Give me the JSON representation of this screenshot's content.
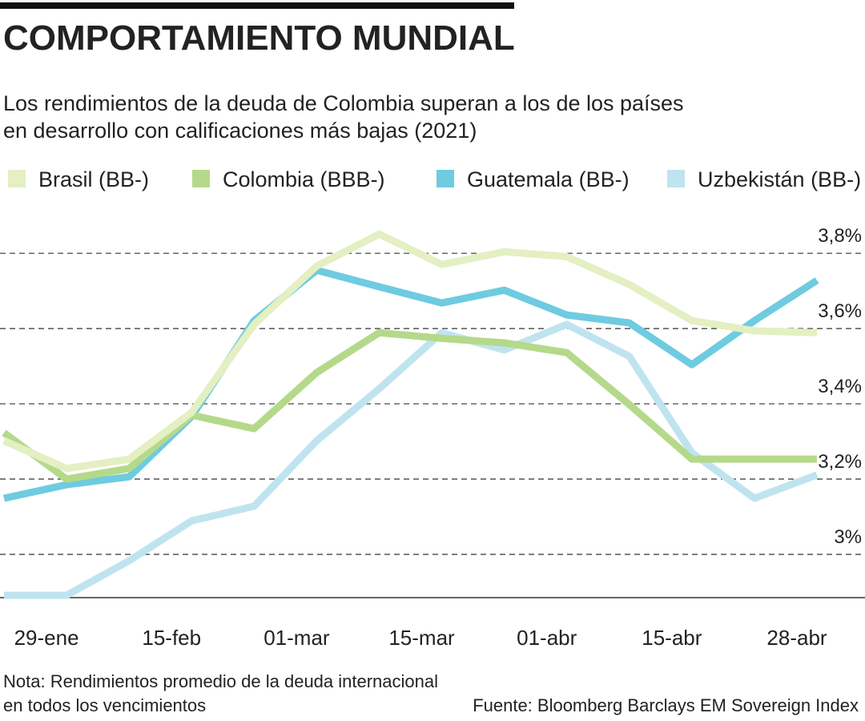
{
  "chart_data": {
    "type": "line",
    "title": "COMPORTAMIENTO MUNDIAL",
    "subtitle": [
      "Los rendimientos de la deuda de Colombia superan a los de los países",
      "en desarrollo con calificaciones más bajas (2021)"
    ],
    "categories": [
      null,
      "29-ene",
      null,
      "15-feb",
      null,
      "01-mar",
      null,
      "15-mar",
      null,
      "01-abr",
      null,
      "15-abr",
      null,
      "28-abr"
    ],
    "series": [
      {
        "name": "Uzbekistán (BB-)",
        "color": "#bfe4ef",
        "values": [
          2.891,
          2.891,
          2.983,
          3.089,
          3.128,
          3.302,
          3.44,
          3.589,
          3.543,
          3.611,
          3.526,
          3.27,
          3.149,
          3.211
        ]
      },
      {
        "name": "Guatemala (BB-)",
        "color": "#6ecbe0",
        "values": [
          3.149,
          3.185,
          3.206,
          3.366,
          3.621,
          3.755,
          3.711,
          3.668,
          3.702,
          3.636,
          3.615,
          3.504,
          3.621,
          3.728
        ]
      },
      {
        "name": "Colombia (BBB-)",
        "color": "#b5d98a",
        "values": [
          3.323,
          3.2,
          3.228,
          3.37,
          3.334,
          3.483,
          3.589,
          3.574,
          3.562,
          3.536,
          3.398,
          3.253,
          3.253,
          3.253
        ]
      },
      {
        "name": "Brasil (BB-)",
        "color": "#e4efc2",
        "values": [
          3.302,
          3.228,
          3.253,
          3.377,
          3.611,
          3.766,
          3.851,
          3.77,
          3.804,
          3.791,
          3.717,
          3.621,
          3.594,
          3.589
        ]
      }
    ],
    "legend_order": [
      3,
      2,
      1,
      0
    ],
    "ylim": [
      2.885,
      3.877
    ],
    "yticks": [
      {
        "value": 3,
        "label": "3%"
      },
      {
        "value": 3.2,
        "label": "3,2%"
      },
      {
        "value": 3.4,
        "label": "3,4%"
      },
      {
        "value": 3.6,
        "label": "3,6%"
      },
      {
        "value": 3.8,
        "label": "3,8%"
      }
    ],
    "grid": true,
    "note": [
      "Nota: Rendimientos promedio de la deuda internacional",
      "en todos los vencimientos"
    ],
    "source": "Fuente: Bloomberg Barclays EM Sovereign Index"
  }
}
